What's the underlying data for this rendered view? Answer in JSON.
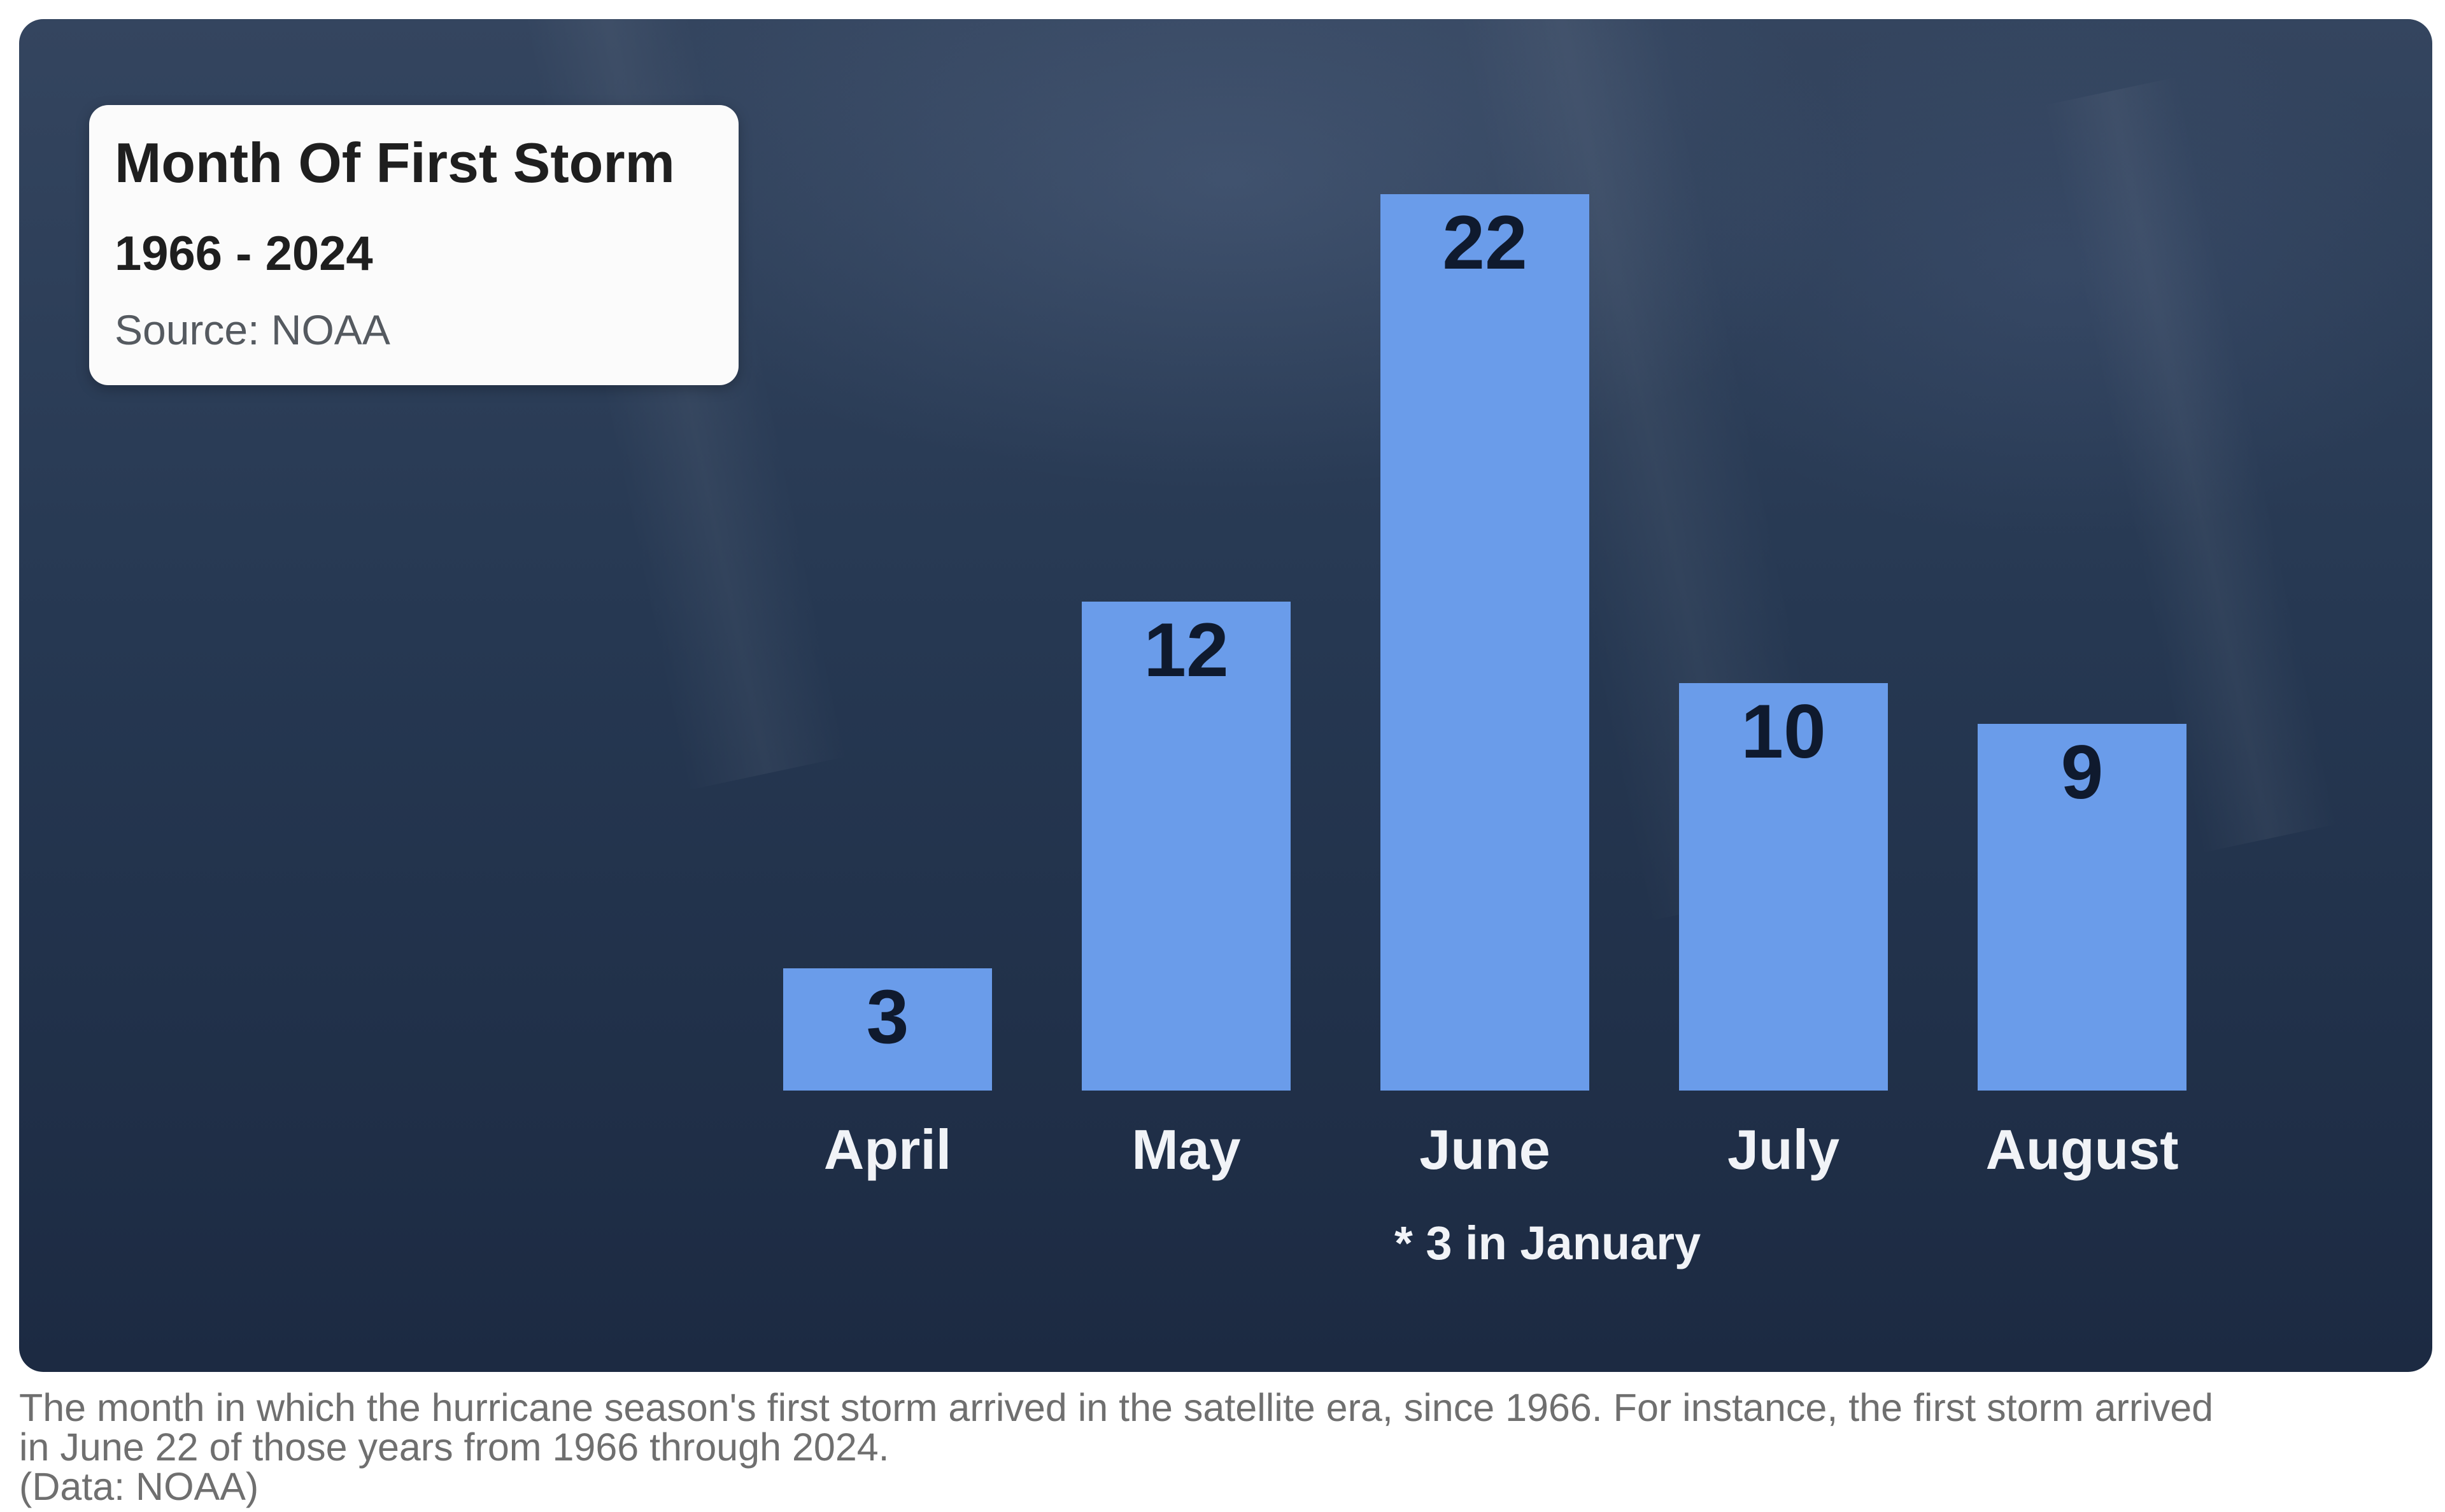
{
  "chart_data": {
    "type": "bar",
    "title": "Month Of First Storm",
    "subtitle": "1966 - 2024",
    "source": "Source: NOAA",
    "categories": [
      "April",
      "May",
      "June",
      "July",
      "August"
    ],
    "values": [
      3,
      12,
      22,
      10,
      9
    ],
    "data_labels": [
      "3",
      "12",
      "22",
      "10",
      "9"
    ],
    "footnote": "* 3 in January",
    "ylim": [
      0,
      22
    ],
    "grid": false,
    "bar_color": "#6a9cea",
    "background_color": "#263852"
  },
  "caption": {
    "line1": "The month in which the hurricane season's first storm arrived in the satellite era, since 1966. For instance, the first storm arrived",
    "line2": "in June 22 of those years from 1966 through 2024.",
    "line3": "(Data: NOAA)"
  }
}
